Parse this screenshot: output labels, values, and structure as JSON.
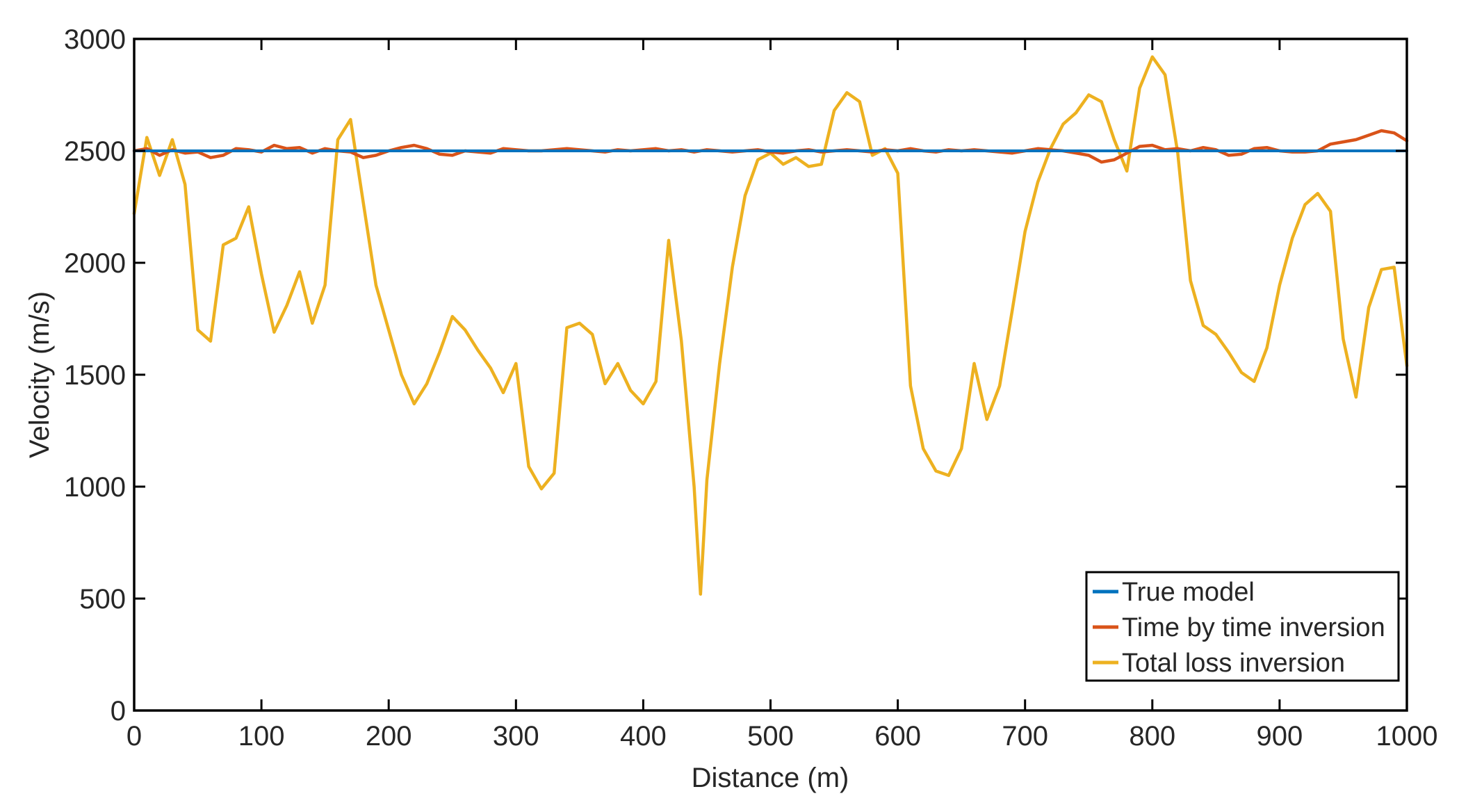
{
  "chart_data": {
    "type": "line",
    "xlabel": "Distance (m)",
    "ylabel": "Velocity (m/s)",
    "xlim": [
      0,
      1000
    ],
    "ylim": [
      0,
      3000
    ],
    "xticks": [
      0,
      100,
      200,
      300,
      400,
      500,
      600,
      700,
      800,
      900,
      1000
    ],
    "yticks": [
      0,
      500,
      1000,
      1500,
      2000,
      2500,
      3000
    ],
    "xtick_labels": [
      "0",
      "100",
      "200",
      "300",
      "400",
      "500",
      "600",
      "700",
      "800",
      "900",
      "1000"
    ],
    "ytick_labels": [
      "0",
      "500",
      "1000",
      "1500",
      "2000",
      "2500",
      "3000"
    ],
    "grid": false,
    "legend_position": "bottom-right",
    "series": [
      {
        "name": "True model",
        "color": "#0072BD",
        "x": [
          0,
          1000
        ],
        "y": [
          2500,
          2500
        ]
      },
      {
        "name": "Time by time inversion",
        "color": "#D95319",
        "x": [
          0,
          10,
          20,
          30,
          40,
          50,
          60,
          70,
          80,
          90,
          100,
          110,
          120,
          130,
          140,
          150,
          160,
          170,
          180,
          190,
          200,
          210,
          220,
          230,
          240,
          250,
          260,
          270,
          280,
          290,
          300,
          310,
          320,
          330,
          340,
          350,
          360,
          370,
          380,
          390,
          400,
          410,
          420,
          430,
          440,
          450,
          460,
          470,
          480,
          490,
          500,
          510,
          520,
          530,
          540,
          550,
          560,
          570,
          580,
          590,
          600,
          610,
          620,
          630,
          640,
          650,
          660,
          670,
          680,
          690,
          700,
          710,
          720,
          730,
          740,
          750,
          760,
          770,
          780,
          790,
          800,
          810,
          820,
          830,
          840,
          850,
          860,
          870,
          880,
          890,
          900,
          910,
          920,
          930,
          940,
          950,
          960,
          970,
          980,
          990,
          1000
        ],
        "y": [
          2500,
          2510,
          2480,
          2505,
          2490,
          2495,
          2470,
          2480,
          2510,
          2505,
          2495,
          2525,
          2510,
          2515,
          2490,
          2510,
          2500,
          2495,
          2470,
          2480,
          2500,
          2515,
          2525,
          2510,
          2485,
          2480,
          2500,
          2495,
          2490,
          2510,
          2505,
          2500,
          2500,
          2505,
          2510,
          2505,
          2500,
          2495,
          2505,
          2500,
          2505,
          2510,
          2500,
          2505,
          2495,
          2505,
          2500,
          2495,
          2500,
          2505,
          2495,
          2490,
          2500,
          2505,
          2495,
          2500,
          2505,
          2500,
          2495,
          2505,
          2500,
          2510,
          2500,
          2495,
          2505,
          2500,
          2505,
          2500,
          2495,
          2490,
          2500,
          2510,
          2505,
          2500,
          2490,
          2480,
          2450,
          2460,
          2490,
          2520,
          2525,
          2505,
          2510,
          2500,
          2515,
          2505,
          2480,
          2485,
          2510,
          2515,
          2500,
          2495,
          2495,
          2500,
          2530,
          2540,
          2550,
          2570,
          2590,
          2580,
          2545
        ]
      },
      {
        "name": "Total loss inversion",
        "color": "#EDB120",
        "x": [
          0,
          10,
          20,
          30,
          40,
          50,
          60,
          70,
          80,
          90,
          100,
          110,
          120,
          130,
          140,
          150,
          160,
          170,
          180,
          190,
          200,
          210,
          220,
          230,
          240,
          250,
          260,
          270,
          280,
          290,
          300,
          310,
          320,
          330,
          340,
          350,
          360,
          370,
          380,
          390,
          400,
          410,
          420,
          430,
          440,
          445,
          450,
          460,
          470,
          480,
          490,
          500,
          510,
          520,
          530,
          540,
          550,
          560,
          570,
          580,
          590,
          600,
          610,
          620,
          630,
          640,
          650,
          660,
          670,
          680,
          690,
          700,
          710,
          720,
          730,
          740,
          750,
          760,
          770,
          780,
          790,
          800,
          810,
          820,
          830,
          840,
          850,
          860,
          870,
          880,
          890,
          900,
          910,
          920,
          930,
          940,
          950,
          960,
          970,
          980,
          990,
          1000
        ],
        "y": [
          2220,
          2560,
          2390,
          2550,
          2350,
          1700,
          1650,
          2080,
          2110,
          2250,
          1950,
          1690,
          1810,
          1960,
          1730,
          1900,
          2550,
          2640,
          2270,
          1900,
          1700,
          1500,
          1370,
          1460,
          1600,
          1760,
          1700,
          1610,
          1530,
          1420,
          1550,
          1090,
          990,
          1060,
          1710,
          1730,
          1680,
          1460,
          1550,
          1430,
          1370,
          1470,
          2100,
          1650,
          1000,
          520,
          1030,
          1550,
          1980,
          2300,
          2460,
          2490,
          2440,
          2470,
          2430,
          2440,
          2680,
          2760,
          2720,
          2480,
          2510,
          2400,
          1450,
          1170,
          1070,
          1050,
          1170,
          1550,
          1300,
          1450,
          1790,
          2140,
          2360,
          2510,
          2620,
          2670,
          2750,
          2720,
          2550,
          2410,
          2780,
          2920,
          2840,
          2490,
          1920,
          1720,
          1680,
          1600,
          1510,
          1470,
          1620,
          1900,
          2110,
          2260,
          2310,
          2230,
          1660,
          1400,
          1800,
          1970,
          1980,
          1540
        ]
      }
    ]
  }
}
